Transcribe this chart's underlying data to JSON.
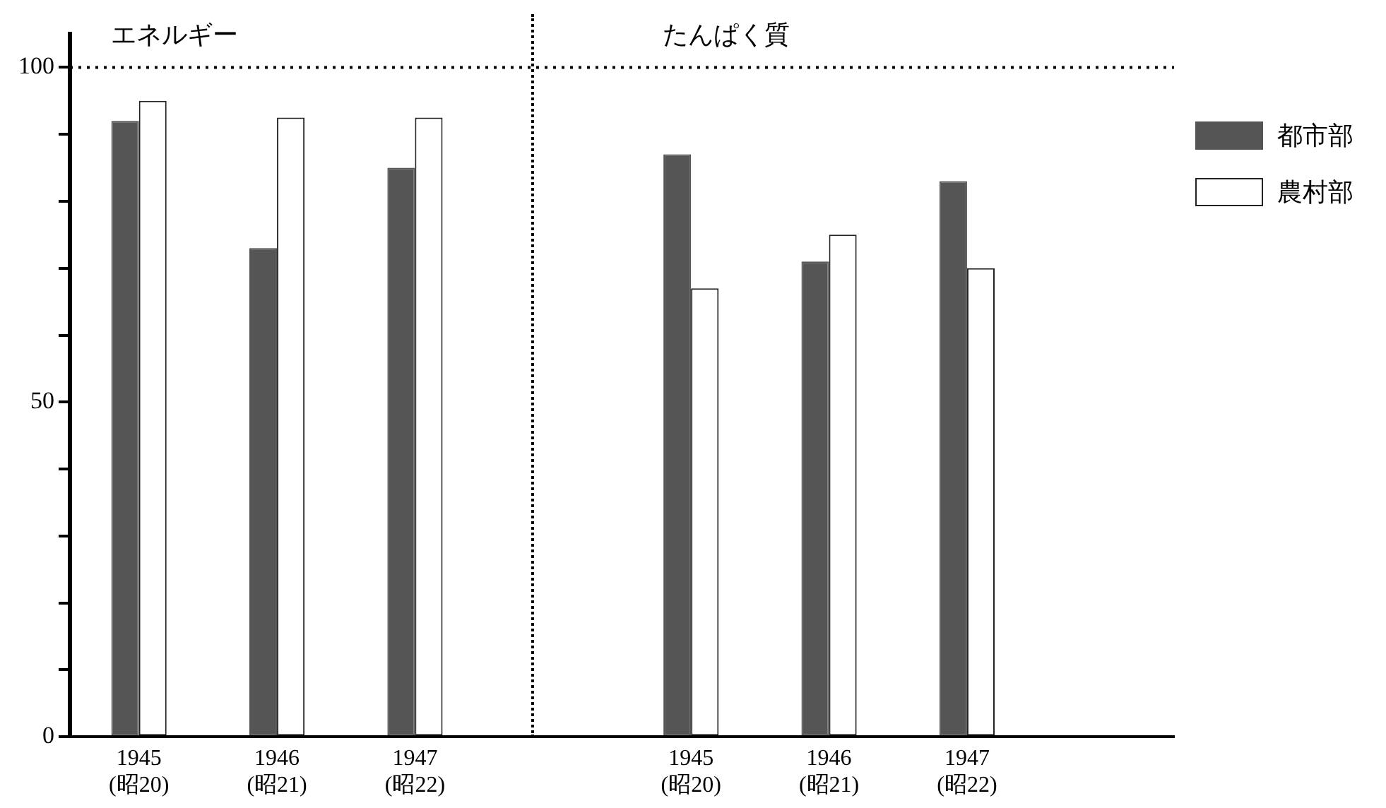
{
  "chart_data": {
    "type": "bar",
    "categories": [
      "1945\n(昭20)",
      "1946\n(昭21)",
      "1947\n(昭22)",
      null,
      "1945\n(昭20)",
      "1946\n(昭21)",
      "1947\n(昭22)",
      null
    ],
    "series": [
      {
        "name": "都市部",
        "color": "#555555",
        "values": [
          92,
          73,
          85,
          null,
          87,
          71,
          83,
          null
        ]
      },
      {
        "name": "農村部",
        "color": "#ffffff",
        "values": [
          95,
          92.5,
          92.5,
          null,
          67,
          75,
          70,
          null
        ]
      }
    ],
    "ylim": [
      0,
      105
    ],
    "yticks": [
      0,
      {
        "value": 10,
        "label": null
      },
      {
        "value": 20,
        "label": null
      },
      {
        "value": 30,
        "label": null
      },
      {
        "value": 40,
        "label": null
      },
      50,
      {
        "value": 60,
        "label": null
      },
      {
        "value": 70,
        "label": null
      },
      {
        "value": 80,
        "label": null
      },
      {
        "value": 90,
        "label": null
      },
      100
    ],
    "ref_lines": [
      {
        "axis": "y",
        "value": 100,
        "line_style": "dotted",
        "color": "#000000"
      }
    ],
    "annotations": [
      "エネルギー",
      "たんぱく質"
    ],
    "grid": false,
    "legend": "right"
  }
}
